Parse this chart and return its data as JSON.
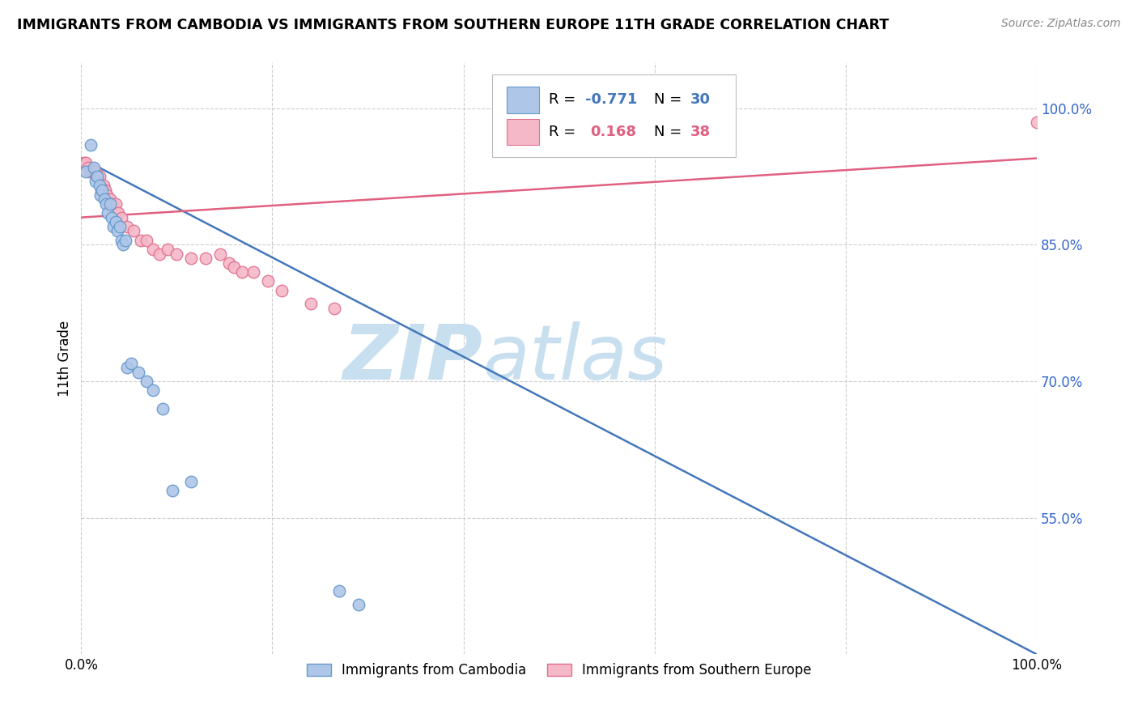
{
  "title": "IMMIGRANTS FROM CAMBODIA VS IMMIGRANTS FROM SOUTHERN EUROPE 11TH GRADE CORRELATION CHART",
  "source": "Source: ZipAtlas.com",
  "ylabel": "11th Grade",
  "ytick_values": [
    0.55,
    0.7,
    0.85,
    1.0
  ],
  "xlim": [
    0.0,
    1.0
  ],
  "ylim": [
    0.4,
    1.05
  ],
  "cambodia_color": "#aec6e8",
  "cambodia_edge": "#6699cc",
  "southern_europe_color": "#f5b8c8",
  "southern_europe_edge": "#e07090",
  "cambodia_line_color": "#4477bb",
  "southern_europe_line_color": "#e06080",
  "watermark_zip_color": "#c8dff0",
  "watermark_atlas_color": "#c8dff0",
  "background_color": "#ffffff",
  "grid_color": "#cccccc",
  "tick_color": "#3366cc",
  "cambodia_x": [
    0.005,
    0.01,
    0.013,
    0.015,
    0.017,
    0.019,
    0.02,
    0.022,
    0.024,
    0.026,
    0.028,
    0.03,
    0.032,
    0.034,
    0.036,
    0.038,
    0.04,
    0.042,
    0.044,
    0.046,
    0.048,
    0.052,
    0.06,
    0.068,
    0.075,
    0.085,
    0.095,
    0.115,
    0.27,
    0.29
  ],
  "cambodia_y": [
    0.93,
    0.96,
    0.935,
    0.92,
    0.925,
    0.915,
    0.905,
    0.91,
    0.9,
    0.895,
    0.885,
    0.895,
    0.88,
    0.87,
    0.875,
    0.865,
    0.87,
    0.855,
    0.85,
    0.855,
    0.715,
    0.72,
    0.71,
    0.7,
    0.69,
    0.67,
    0.58,
    0.59,
    0.47,
    0.455
  ],
  "southern_europe_x": [
    0.003,
    0.005,
    0.007,
    0.009,
    0.011,
    0.013,
    0.015,
    0.017,
    0.019,
    0.021,
    0.023,
    0.025,
    0.027,
    0.03,
    0.033,
    0.036,
    0.039,
    0.042,
    0.048,
    0.055,
    0.062,
    0.068,
    0.075,
    0.082,
    0.09,
    0.1,
    0.115,
    0.13,
    0.145,
    0.155,
    0.16,
    0.168,
    0.18,
    0.195,
    0.21,
    0.24,
    0.265,
    1.0
  ],
  "southern_europe_y": [
    0.94,
    0.94,
    0.935,
    0.93,
    0.93,
    0.93,
    0.93,
    0.925,
    0.925,
    0.91,
    0.915,
    0.91,
    0.905,
    0.9,
    0.895,
    0.895,
    0.885,
    0.88,
    0.87,
    0.865,
    0.855,
    0.855,
    0.845,
    0.84,
    0.845,
    0.84,
    0.835,
    0.835,
    0.84,
    0.83,
    0.825,
    0.82,
    0.82,
    0.81,
    0.8,
    0.785,
    0.78,
    0.985
  ],
  "cambodia_trend_y_start": 0.945,
  "cambodia_trend_y_end": 0.4,
  "southern_europe_trend_y_start": 0.88,
  "southern_europe_trend_y_end": 0.945
}
